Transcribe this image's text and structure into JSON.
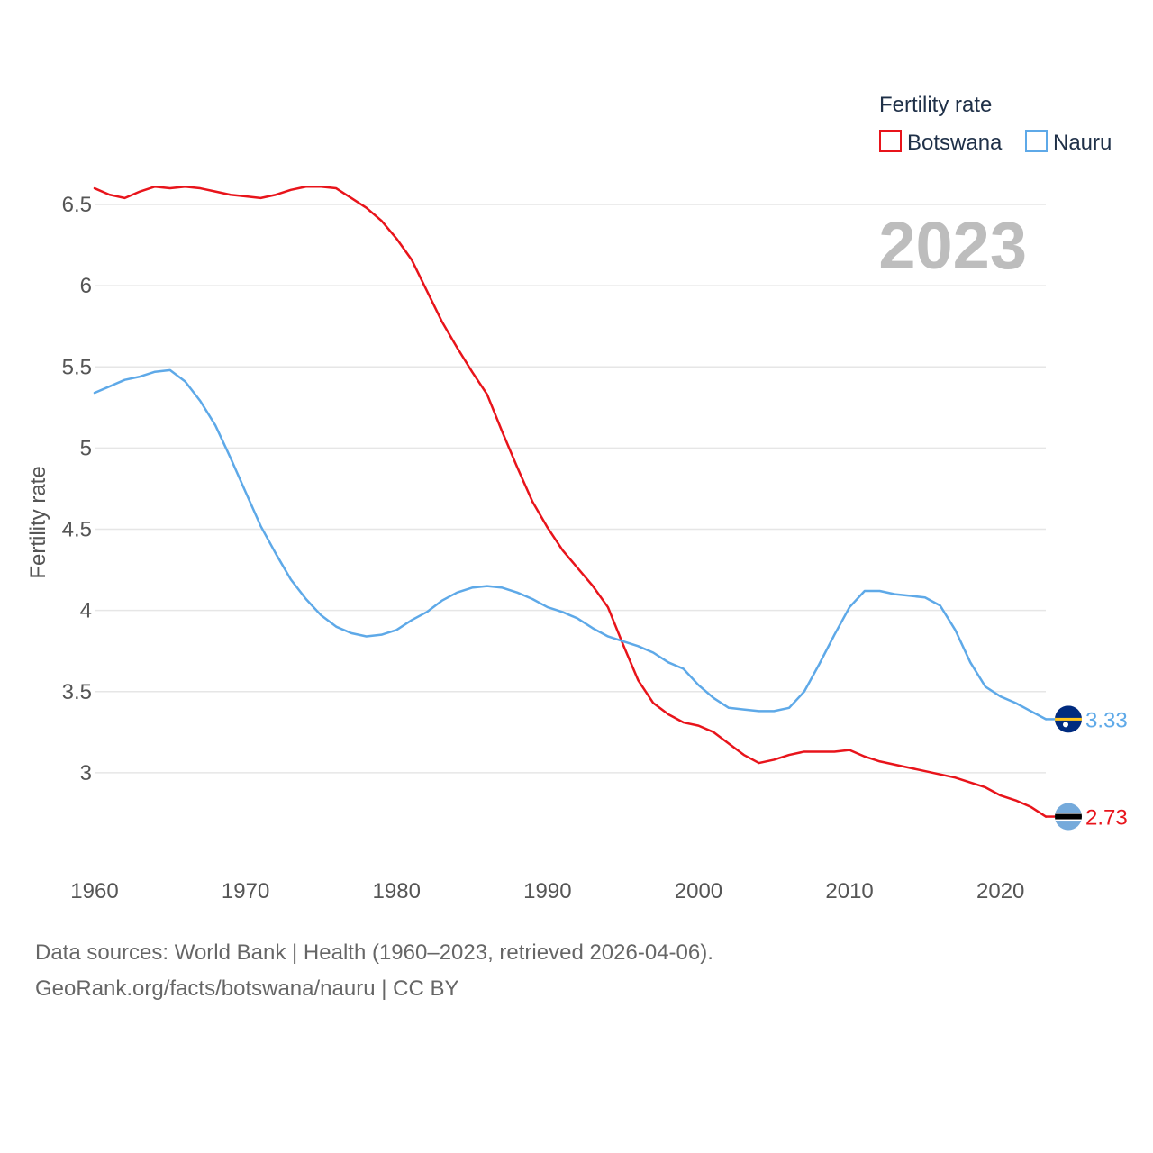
{
  "chart_data": {
    "type": "line",
    "legend_title": "Fertility rate",
    "ylabel": "Fertility rate",
    "xlabel": "",
    "year_overlay": "2023",
    "xlim": [
      1960,
      2023
    ],
    "ylim": [
      2.5,
      6.75
    ],
    "x_ticks": [
      1960,
      1970,
      1980,
      1990,
      2000,
      2010,
      2020
    ],
    "y_ticks": [
      3,
      3.5,
      4,
      4.5,
      5,
      5.5,
      6,
      6.5
    ],
    "y_tick_labels": [
      "3",
      "3.5",
      "4",
      "4.5",
      "5",
      "5.5",
      "6",
      "6.5"
    ],
    "legend_position": "top-right",
    "x": [
      1960,
      1961,
      1962,
      1963,
      1964,
      1965,
      1966,
      1967,
      1968,
      1969,
      1970,
      1971,
      1972,
      1973,
      1974,
      1975,
      1976,
      1977,
      1978,
      1979,
      1980,
      1981,
      1982,
      1983,
      1984,
      1985,
      1986,
      1987,
      1988,
      1989,
      1990,
      1991,
      1992,
      1993,
      1994,
      1995,
      1996,
      1997,
      1998,
      1999,
      2000,
      2001,
      2002,
      2003,
      2004,
      2005,
      2006,
      2007,
      2008,
      2009,
      2010,
      2011,
      2012,
      2013,
      2014,
      2015,
      2016,
      2017,
      2018,
      2019,
      2020,
      2021,
      2022,
      2023
    ],
    "series": [
      {
        "name": "Botswana",
        "color": "#e8141b",
        "end_label": "2.73",
        "values": [
          6.6,
          6.56,
          6.54,
          6.58,
          6.61,
          6.6,
          6.61,
          6.6,
          6.58,
          6.56,
          6.55,
          6.54,
          6.56,
          6.59,
          6.61,
          6.61,
          6.6,
          6.54,
          6.48,
          6.4,
          6.29,
          6.16,
          5.97,
          5.78,
          5.62,
          5.47,
          5.33,
          5.1,
          4.88,
          4.67,
          4.51,
          4.37,
          4.26,
          4.15,
          4.02,
          3.79,
          3.57,
          3.43,
          3.36,
          3.31,
          3.29,
          3.25,
          3.18,
          3.11,
          3.06,
          3.08,
          3.11,
          3.13,
          3.13,
          3.13,
          3.14,
          3.1,
          3.07,
          3.05,
          3.03,
          3.01,
          2.99,
          2.97,
          2.94,
          2.91,
          2.86,
          2.83,
          2.79,
          2.73
        ]
      },
      {
        "name": "Nauru",
        "color": "#5ea9e8",
        "end_label": "3.33",
        "values": [
          5.34,
          5.38,
          5.42,
          5.44,
          5.47,
          5.48,
          5.41,
          5.29,
          5.14,
          4.94,
          4.73,
          4.52,
          4.35,
          4.19,
          4.07,
          3.97,
          3.9,
          3.86,
          3.84,
          3.85,
          3.88,
          3.94,
          3.99,
          4.06,
          4.11,
          4.14,
          4.15,
          4.14,
          4.11,
          4.07,
          4.02,
          3.99,
          3.95,
          3.89,
          3.84,
          3.81,
          3.78,
          3.74,
          3.68,
          3.64,
          3.54,
          3.46,
          3.4,
          3.39,
          3.38,
          3.38,
          3.4,
          3.5,
          3.67,
          3.85,
          4.02,
          4.12,
          4.12,
          4.1,
          4.09,
          4.08,
          4.03,
          3.88,
          3.68,
          3.53,
          3.47,
          3.43,
          3.38,
          3.33
        ]
      }
    ]
  },
  "flags": {
    "botswana": {
      "blue": "#75aadb",
      "black": "#000000",
      "white": "#ffffff"
    },
    "nauru": {
      "blue": "#002b7f",
      "yellow": "#ffc61e",
      "white": "#ffffff"
    }
  },
  "colors": {
    "grid": "#e6e6e6",
    "tick": "#555555",
    "year": "#bdbdbd"
  },
  "source": {
    "line1": "Data sources: World Bank | Health (1960–2023, retrieved 2026-04-06).",
    "line2": "GeoRank.org/facts/botswana/nauru | CC BY"
  }
}
